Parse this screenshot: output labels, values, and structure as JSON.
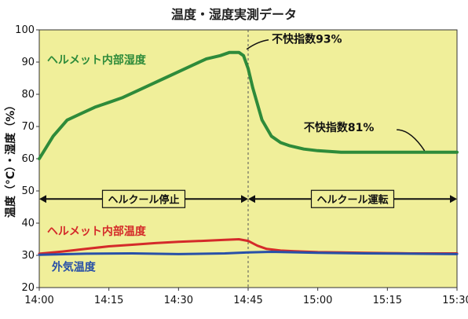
{
  "chart_data": {
    "type": "line",
    "title": "温度・湿度実測データ",
    "ylabel": "温度（°C）・湿度（%）",
    "ylim": [
      20,
      100
    ],
    "y_ticks": [
      20,
      30,
      40,
      50,
      60,
      70,
      80,
      90,
      100
    ],
    "x_ticks": [
      "14:00",
      "14:15",
      "14:30",
      "14:45",
      "15:00",
      "15:15",
      "15:30"
    ],
    "x_range_minutes": [
      0,
      90
    ],
    "grid": false,
    "series": [
      {
        "name": "ヘルメット内部湿度",
        "color": "#2e8b3a",
        "x_minutes": [
          0,
          3,
          6,
          9,
          12,
          15,
          18,
          21,
          24,
          27,
          30,
          33,
          36,
          39,
          41,
          43,
          44,
          45,
          46,
          47,
          48,
          50,
          52,
          54,
          57,
          60,
          65,
          70,
          75,
          80,
          85,
          90
        ],
        "values": [
          60,
          67,
          72,
          74,
          76,
          77.5,
          79,
          81,
          83,
          85,
          87,
          89,
          91,
          92,
          93,
          93,
          92,
          88,
          82,
          77,
          72,
          67,
          65,
          64,
          63,
          62.5,
          62,
          62,
          62,
          62,
          62,
          62
        ]
      },
      {
        "name": "ヘルメット内部温度",
        "color": "#d42a2a",
        "x_minutes": [
          0,
          5,
          10,
          15,
          20,
          25,
          30,
          35,
          40,
          43,
          45,
          47,
          49,
          52,
          55,
          60,
          65,
          70,
          75,
          80,
          85,
          90
        ],
        "values": [
          30.5,
          31.2,
          32,
          32.8,
          33.3,
          33.8,
          34.2,
          34.5,
          34.8,
          35,
          34.5,
          33,
          32,
          31.5,
          31.3,
          31,
          30.9,
          30.8,
          30.7,
          30.6,
          30.6,
          30.6
        ]
      },
      {
        "name": "外気温度",
        "color": "#2850a8",
        "x_minutes": [
          0,
          10,
          20,
          30,
          40,
          45,
          50,
          60,
          70,
          80,
          90
        ],
        "values": [
          30.2,
          30.5,
          30.6,
          30.4,
          30.6,
          30.9,
          31.1,
          30.8,
          30.6,
          30.5,
          30.4
        ]
      }
    ],
    "phases": [
      {
        "label": "ヘルクール停止",
        "from_minutes": 0,
        "to_minutes": 45
      },
      {
        "label": "ヘルクール運転",
        "from_minutes": 45,
        "to_minutes": 90
      }
    ],
    "phase_level": 47.5,
    "annotations": [
      {
        "text": "不快指数93%",
        "x_minutes": 44,
        "value": 93
      },
      {
        "text": "不快指数81%",
        "x_minutes": 83,
        "value": 62
      }
    ]
  },
  "colors": {
    "plot_background": "#f0ef9a",
    "axis": "#333333"
  }
}
